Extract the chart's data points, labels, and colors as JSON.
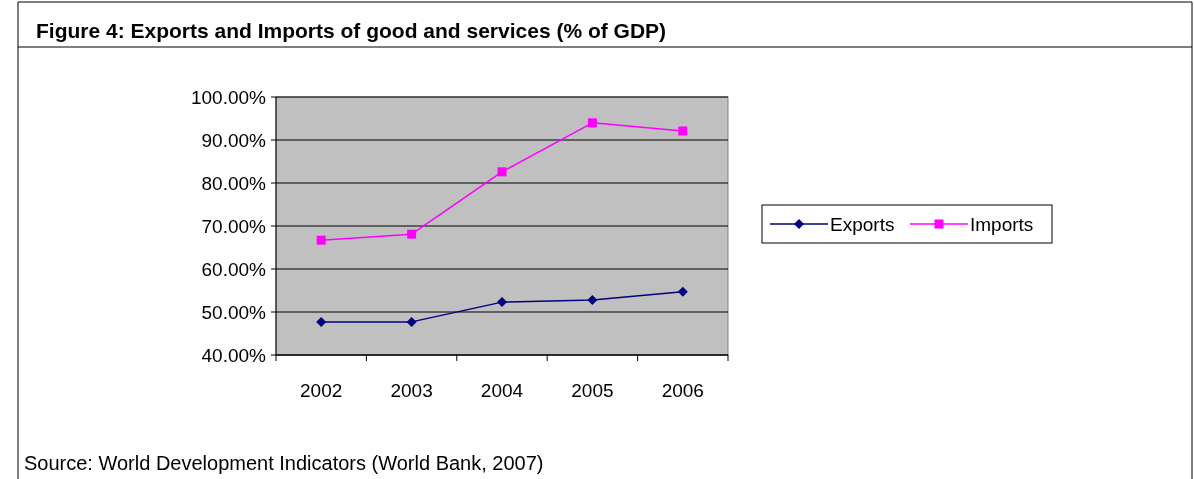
{
  "chart_data": {
    "type": "line",
    "title": "Figure 4: Exports and Imports of good and services (% of GDP)",
    "categories": [
      "2002",
      "2003",
      "2004",
      "2005",
      "2006"
    ],
    "series": [
      {
        "name": "Exports",
        "color": "#000080",
        "marker": "diamond",
        "values": [
          47.7,
          47.7,
          52.3,
          52.8,
          54.7
        ]
      },
      {
        "name": "Imports",
        "color": "#ff00ff",
        "marker": "square",
        "values": [
          66.7,
          68.1,
          82.6,
          94.0,
          92.1
        ]
      }
    ],
    "ylim": [
      40,
      100
    ],
    "yticks": [
      {
        "value": 40,
        "label": "40.00%"
      },
      {
        "value": 50,
        "label": "50.00%"
      },
      {
        "value": 60,
        "label": "60.00%"
      },
      {
        "value": 70,
        "label": "70.00%"
      },
      {
        "value": 80,
        "label": "80.00%"
      },
      {
        "value": 90,
        "label": "90.00%"
      },
      {
        "value": 100,
        "label": "100.00%"
      }
    ],
    "grid": "y",
    "legend": "right",
    "annotations": [
      "Source: World Development Indicators (World Bank, 2007)"
    ]
  }
}
